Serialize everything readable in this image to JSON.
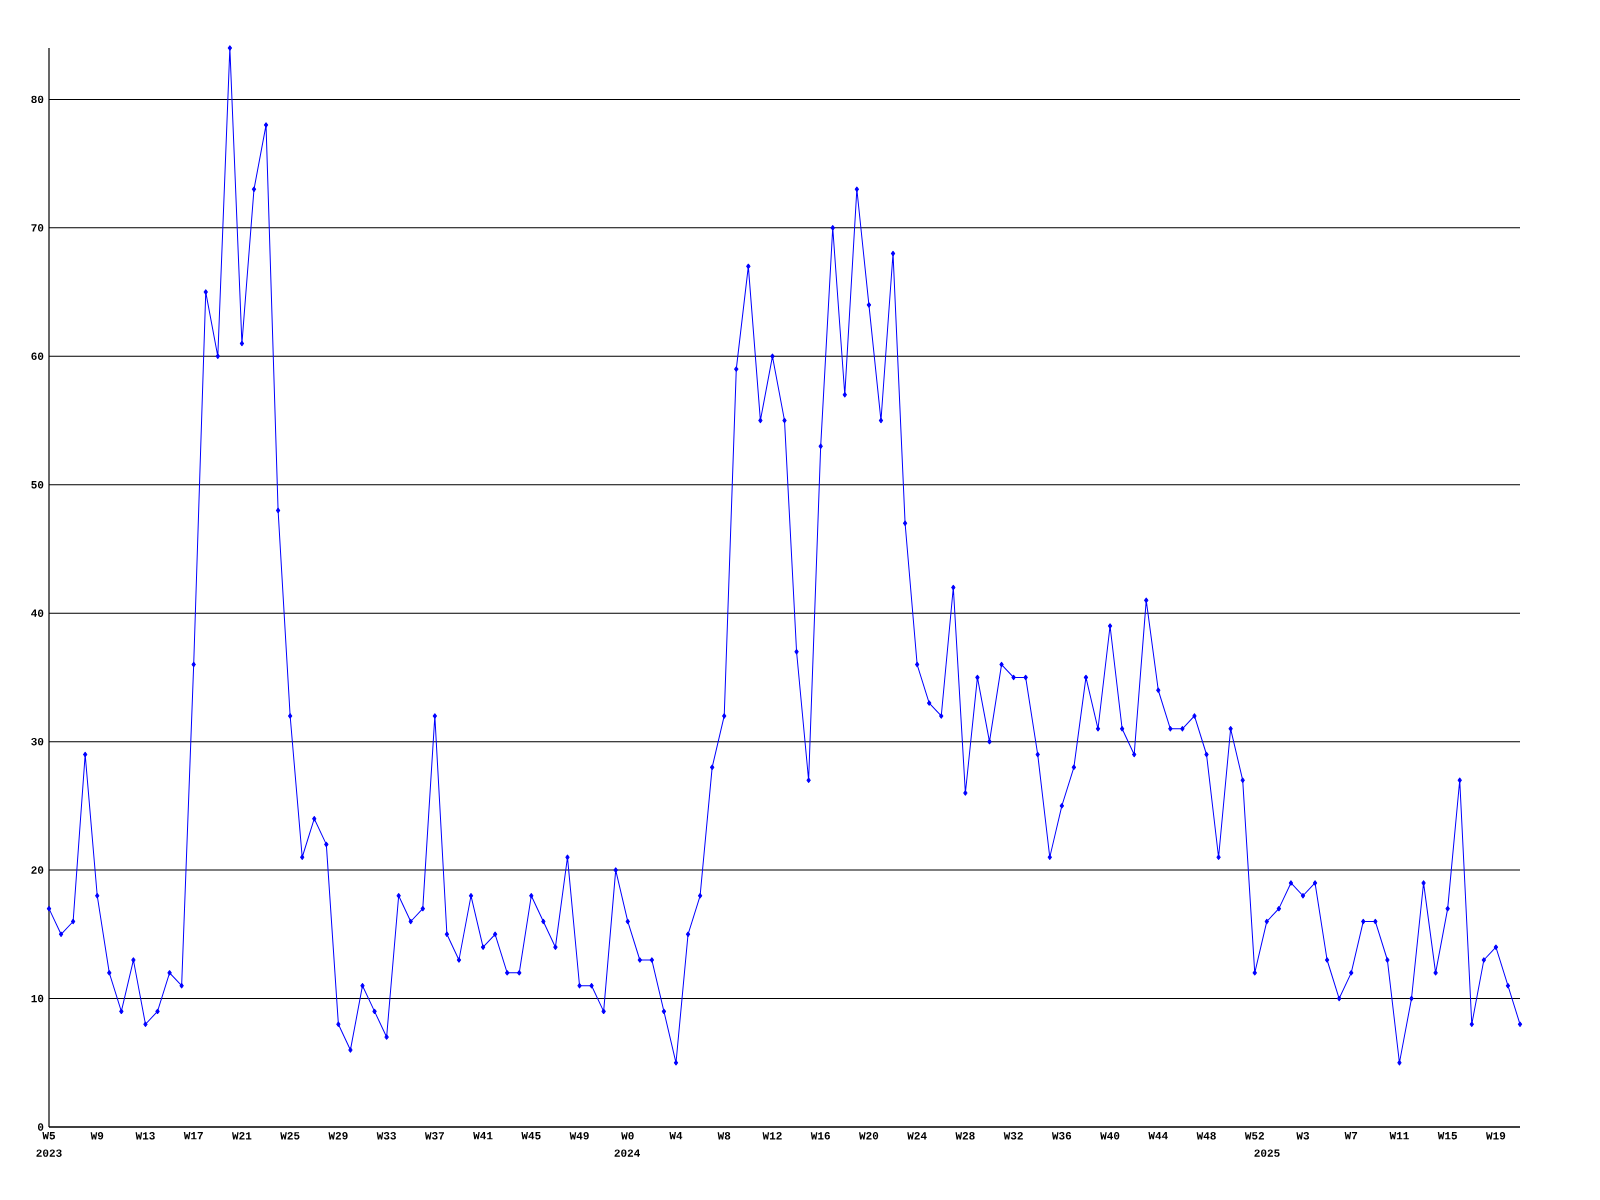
{
  "chart_data": {
    "type": "line",
    "color": "#0000ff",
    "marker": "diamond",
    "grid": "y",
    "categories": [
      "W5",
      null,
      null,
      null,
      "W9",
      null,
      null,
      null,
      "W13",
      null,
      null,
      null,
      "W17",
      null,
      null,
      null,
      "W21",
      null,
      null,
      null,
      "W25",
      null,
      null,
      null,
      "W29",
      null,
      null,
      null,
      "W33",
      null,
      null,
      null,
      "W37",
      null,
      null,
      null,
      "W41",
      null,
      null,
      null,
      "W45",
      null,
      null,
      null,
      "W49",
      null,
      null,
      null,
      "W0",
      null,
      null,
      null,
      "W4",
      null,
      null,
      null,
      "W8",
      null,
      null,
      null,
      "W12",
      null,
      null,
      null,
      "W16",
      null,
      null,
      null,
      "W20",
      null,
      null,
      null,
      "W24",
      null,
      null,
      null,
      "W28",
      null,
      null,
      null,
      "W32",
      null,
      null,
      null,
      "W36",
      null,
      null,
      null,
      "W40",
      null,
      null,
      null,
      "W44",
      null,
      null,
      null,
      "W48",
      null,
      null,
      null,
      "W52",
      null,
      null,
      null,
      "W3",
      null,
      null,
      null,
      "W7",
      null,
      null,
      null,
      "W11",
      null,
      null,
      null,
      "W15",
      null,
      null,
      null,
      "W19",
      null,
      null
    ],
    "values": [
      17,
      15,
      16,
      29,
      18,
      12,
      9,
      13,
      8,
      9,
      12,
      11,
      36,
      65,
      60,
      84,
      61,
      73,
      78,
      48,
      32,
      21,
      24,
      22,
      8,
      6,
      11,
      9,
      7,
      18,
      16,
      17,
      32,
      15,
      13,
      18,
      14,
      15,
      12,
      12,
      18,
      16,
      14,
      21,
      11,
      11,
      9,
      20,
      16,
      13,
      13,
      9,
      5,
      15,
      18,
      28,
      32,
      59,
      67,
      55,
      60,
      55,
      37,
      27,
      53,
      70,
      57,
      73,
      64,
      55,
      68,
      47,
      36,
      33,
      32,
      42,
      26,
      35,
      30,
      36,
      35,
      35,
      29,
      21,
      25,
      28,
      35,
      31,
      39,
      31,
      29,
      41,
      34,
      31,
      31,
      32,
      29,
      21,
      31,
      27,
      12,
      16,
      17,
      19,
      18,
      19,
      13,
      10,
      12,
      16,
      16,
      13,
      5,
      10,
      19,
      12,
      17,
      27,
      8,
      13,
      14,
      11,
      8
    ],
    "ylim": [
      0,
      84
    ],
    "yticks": [
      0,
      10,
      20,
      30,
      40,
      50,
      60,
      70,
      80
    ],
    "annotations": [
      "2023",
      "2024",
      "2025"
    ]
  }
}
